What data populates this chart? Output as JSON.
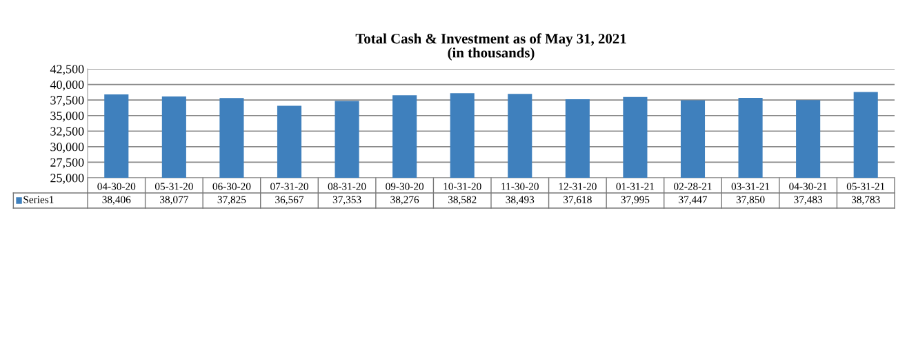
{
  "chart_data": {
    "type": "bar",
    "title": "Total Cash & Investment as of May 31, 2021\n(in thousands)",
    "categories": [
      "04-30-20",
      "05-31-20",
      "06-30-20",
      "07-31-20",
      "08-31-20",
      "09-30-20",
      "10-31-20",
      "11-30-20",
      "12-31-20",
      "01-31-21",
      "02-28-21",
      "03-31-21",
      "04-30-21",
      "05-31-21"
    ],
    "series": [
      {
        "name": "Series1",
        "color": "#3f80bd",
        "values": [
          38406,
          38077,
          37825,
          36567,
          37353,
          38276,
          38582,
          38493,
          37618,
          37995,
          37447,
          37850,
          37483,
          38783
        ],
        "value_labels": [
          "38,406",
          "38,077",
          "37,825",
          "36,567",
          "37,353",
          "38,276",
          "38,582",
          "38,493",
          "37,618",
          "37,995",
          "37,447",
          "37,850",
          "37,483",
          "38,783"
        ]
      }
    ],
    "ylim": [
      25000,
      42500
    ],
    "yticks": [
      {
        "value": 25000,
        "label": "25,000"
      },
      {
        "value": 27500,
        "label": "27,500"
      },
      {
        "value": 30000,
        "label": "30,000"
      },
      {
        "value": 32500,
        "label": "32,500"
      },
      {
        "value": 35000,
        "label": "35,000"
      },
      {
        "value": 37500,
        "label": "37,500"
      },
      {
        "value": 40000,
        "label": "40,000"
      },
      {
        "value": 42500,
        "label": "42,500"
      }
    ],
    "grid": "y",
    "legend": "bottom left"
  }
}
